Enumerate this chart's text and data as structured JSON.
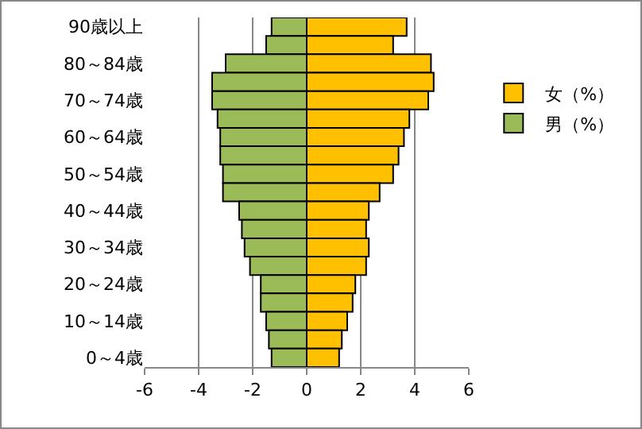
{
  "chart_data": {
    "type": "bar",
    "orientation": "horizontal",
    "stacked": true,
    "categories": [
      "90歳以上",
      null,
      "80～84歳",
      null,
      "70～74歳",
      null,
      "60～64歳",
      null,
      "50～54歳",
      null,
      "40～44歳",
      null,
      "30～34歳",
      null,
      "20～24歳",
      null,
      "10～14歳",
      null,
      "0～4歳"
    ],
    "series": [
      {
        "name": "女（%）",
        "color": "#ffc000",
        "values": [
          3.7,
          3.2,
          4.6,
          4.7,
          4.5,
          3.8,
          3.6,
          3.4,
          3.2,
          2.7,
          2.3,
          2.2,
          2.3,
          2.2,
          1.8,
          1.7,
          1.5,
          1.3,
          1.2
        ]
      },
      {
        "name": "男（%）",
        "color": "#9bbb59",
        "values": [
          -1.3,
          -1.5,
          -3.0,
          -3.5,
          -3.5,
          -3.3,
          -3.2,
          -3.2,
          -3.1,
          -3.1,
          -2.5,
          -2.4,
          -2.3,
          -2.1,
          -1.7,
          -1.7,
          -1.5,
          -1.4,
          -1.3
        ]
      }
    ],
    "xlim": [
      -6,
      6
    ],
    "xticks": [
      -6,
      -4,
      -2,
      0,
      2,
      4,
      6
    ],
    "grid": "x",
    "legend": "right"
  }
}
